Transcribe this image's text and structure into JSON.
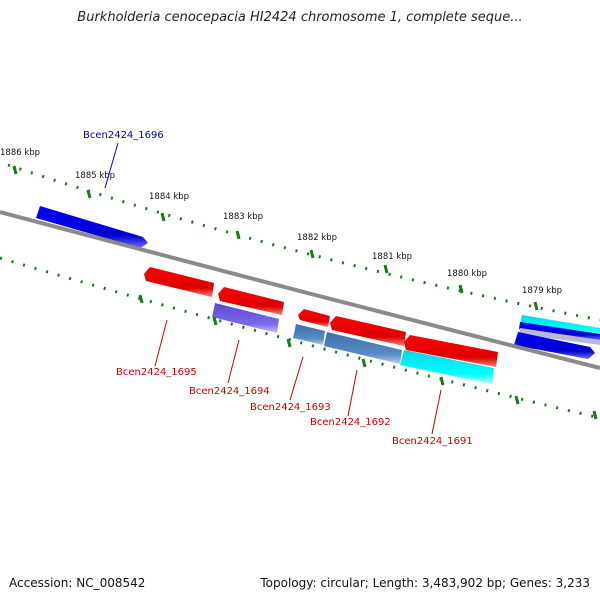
{
  "header": {
    "title": "Burkholderia cenocepacia HI2424 chromosome 1, complete seque..."
  },
  "footer": {
    "accession": "Accession: NC_008542",
    "topology": "Topology: circular; Length: 3,483,902 bp; Genes: 3,233"
  },
  "scale": {
    "ticks": [
      "1886 kbp",
      "1885 kbp",
      "1884 kbp",
      "1883 kbp",
      "1882 kbp",
      "1881 kbp",
      "1880 kbp",
      "1879 kbp"
    ]
  },
  "genes": {
    "forward": [
      {
        "label": "Bcen2424_1696",
        "color": "#0000cc",
        "label_color": "#0000aa"
      }
    ],
    "reverse": [
      {
        "label": "Bcen2424_1695",
        "color": "#cc0000",
        "label_color": "#cc0000"
      },
      {
        "label": "Bcen2424_1694",
        "color": "#cc0000",
        "label_color": "#cc0000"
      },
      {
        "label": "Bcen2424_1693",
        "color": "#cc0000",
        "label_color": "#cc0000"
      },
      {
        "label": "Bcen2424_1692",
        "color": "#cc0000",
        "label_color": "#cc0000"
      },
      {
        "label": "Bcen2424_1691",
        "color": "#cc0000",
        "label_color": "#cc0000"
      }
    ]
  },
  "colors": {
    "backbone": "#808080",
    "tick": "#1a7a1a",
    "gene_forward": "#0000ff",
    "gene_reverse": "#ff0000",
    "feature_purple": "#6a5acd",
    "feature_steel": "#4a7ab0",
    "feature_cyan": "#00e5ee"
  }
}
